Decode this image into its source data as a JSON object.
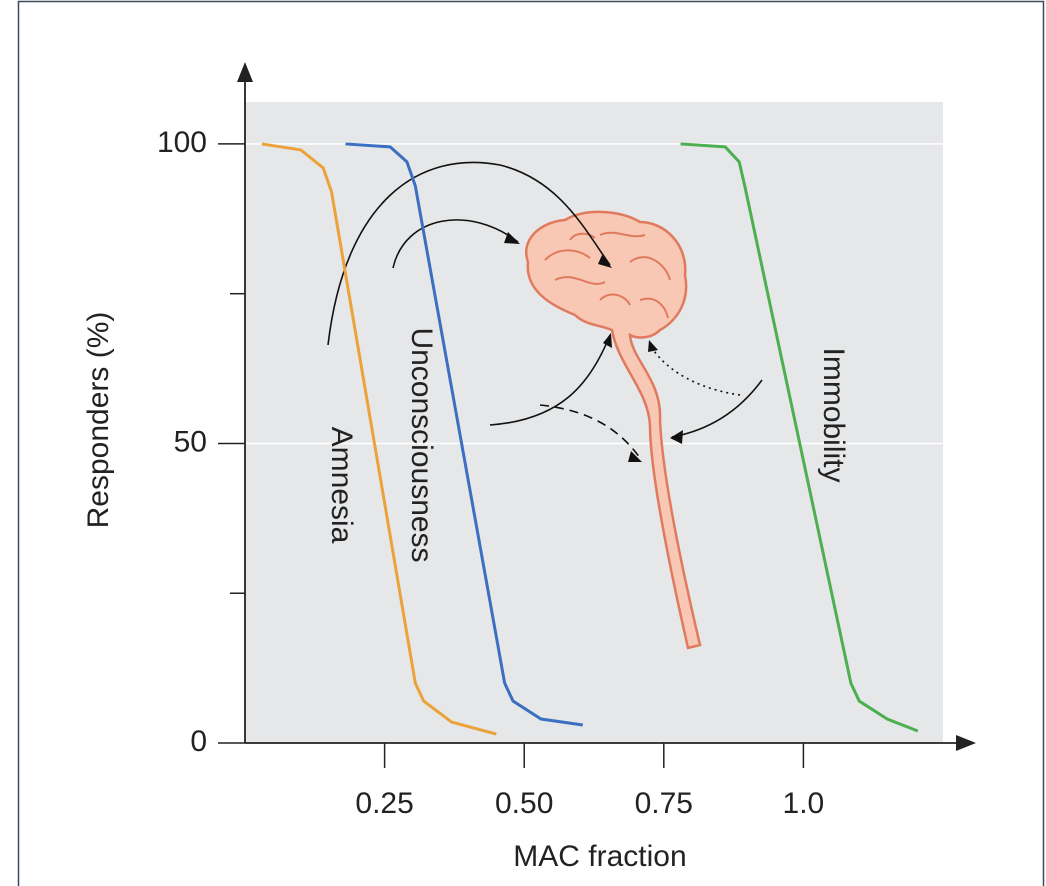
{
  "chart_data": {
    "type": "line",
    "xlabel": "MAC fraction",
    "ylabel": "Responders (%)",
    "xlim": [
      0,
      1.25
    ],
    "ylim": [
      0,
      107
    ],
    "xticks": [
      0.25,
      {
        "value": 0.5,
        "label": "0.50"
      },
      0.75,
      {
        "value": 1,
        "label": "1.0"
      }
    ],
    "yticks": [
      0,
      50,
      100
    ],
    "yminor_ticks": [
      25,
      75
    ],
    "grid": true,
    "series": [
      {
        "name": "Amnesia",
        "color": "#eba23a",
        "x": [
          0.03,
          0.1,
          0.14,
          0.155,
          0.305,
          0.32,
          0.37,
          0.45
        ],
        "values": [
          100,
          99,
          96,
          92,
          10,
          7,
          3.5,
          1.5
        ]
      },
      {
        "name": "Unconsciousness",
        "color": "#3a6fc2",
        "x": [
          0.18,
          0.26,
          0.29,
          0.305,
          0.465,
          0.48,
          0.53,
          0.605
        ],
        "values": [
          100,
          99.5,
          97,
          93,
          10,
          7,
          4,
          3
        ]
      },
      {
        "name": "Immobility",
        "color": "#4caf50",
        "x": [
          0.78,
          0.86,
          0.885,
          0.895,
          1.085,
          1.1,
          1.15,
          1.205
        ],
        "values": [
          100,
          99.5,
          97,
          93,
          10,
          7,
          4,
          2
        ]
      }
    ]
  }
}
